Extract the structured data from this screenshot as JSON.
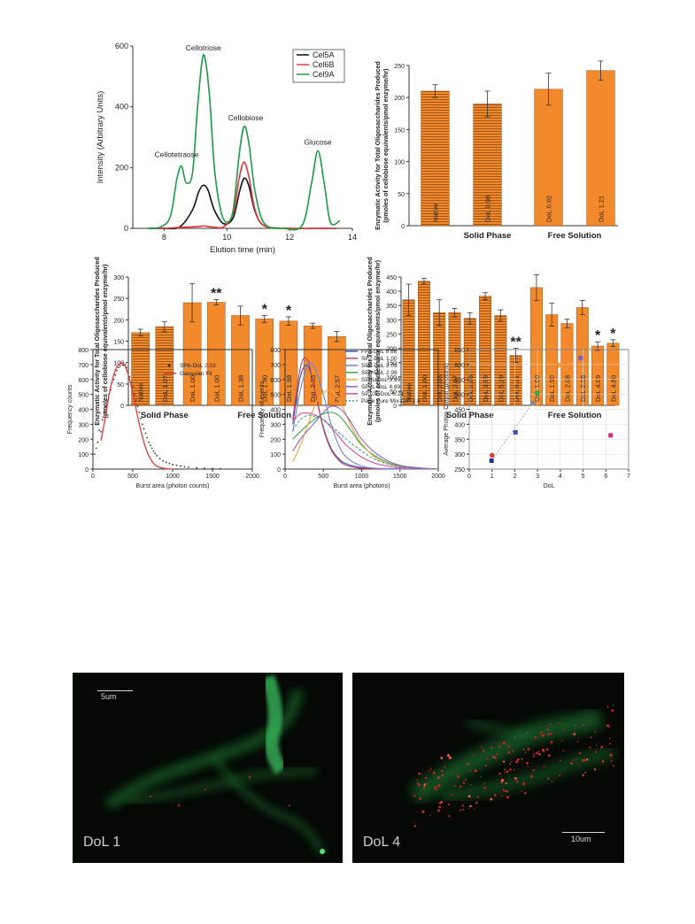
{
  "chart_data": [
    {
      "type": "line",
      "xlabel": "Elution time (min)",
      "ylabel": "Intensity (Arbitrary Units)",
      "xlim": [
        7,
        14
      ],
      "ylim": [
        0,
        600
      ],
      "xticks": [
        8,
        10,
        12,
        14
      ],
      "yticks": [
        0,
        200,
        400,
        600
      ],
      "legend_position": "top-right",
      "peak_labels": [
        {
          "text": "Cellotriose",
          "x": 9.25,
          "y": 585
        },
        {
          "text": "Cellotetraose",
          "x": 8.4,
          "y": 235
        },
        {
          "text": "Cellobiose",
          "x": 10.6,
          "y": 355
        },
        {
          "text": "Glucose",
          "x": 12.9,
          "y": 275
        }
      ],
      "series": [
        {
          "name": "Cel5A",
          "color": "#111111",
          "x": [
            7.5,
            8.0,
            8.5,
            8.9,
            9.1,
            9.25,
            9.4,
            9.6,
            9.9,
            10.2,
            10.4,
            10.55,
            10.7,
            10.9,
            11.2,
            12.0,
            13.0,
            13.5
          ],
          "y": [
            0,
            0,
            5,
            60,
            120,
            142,
            125,
            60,
            15,
            35,
            120,
            165,
            140,
            55,
            8,
            0,
            0,
            0
          ]
        },
        {
          "name": "Cel6B",
          "color": "#e8353b",
          "x": [
            7.5,
            8.0,
            8.5,
            8.9,
            9.1,
            9.25,
            9.4,
            9.6,
            9.9,
            10.2,
            10.4,
            10.55,
            10.7,
            10.9,
            11.2,
            12.0,
            13.0,
            13.5
          ],
          "y": [
            0,
            0,
            3,
            5,
            6,
            8,
            6,
            4,
            5,
            50,
            170,
            218,
            170,
            60,
            8,
            0,
            0,
            0
          ]
        },
        {
          "name": "Cel9A",
          "color": "#1a9c46",
          "x": [
            7.5,
            7.9,
            8.2,
            8.4,
            8.55,
            8.7,
            8.9,
            9.05,
            9.2,
            9.3,
            9.45,
            9.6,
            9.8,
            10.0,
            10.2,
            10.4,
            10.55,
            10.7,
            10.9,
            11.2,
            11.8,
            12.4,
            12.7,
            12.9,
            13.1,
            13.3,
            13.6
          ],
          "y": [
            0,
            5,
            40,
            160,
            205,
            150,
            180,
            380,
            545,
            560,
            430,
            200,
            60,
            20,
            60,
            250,
            335,
            280,
            120,
            15,
            0,
            10,
            150,
            255,
            150,
            20,
            25
          ]
        }
      ]
    },
    {
      "type": "bar",
      "ylabel": "Enzymatic Activity for Total Oligosaccharides Produced (pmoles of cellobiose equivalents/pmol enzyme/hr)",
      "ylim": [
        0,
        250
      ],
      "yticks": [
        0,
        50,
        100,
        150,
        200,
        250
      ],
      "bar_color": "#f28a2b",
      "groups": [
        {
          "label": "Solid Phase",
          "bars": [
            1
          ]
        },
        {
          "label": "Free Solution",
          "bars": [
            2,
            3
          ]
        }
      ],
      "categories": [
        "Native",
        "DoL 0.98",
        "DoL 0.92",
        "DoL 1.21"
      ],
      "values": [
        210,
        190,
        213,
        242
      ],
      "errors": [
        10,
        20,
        25,
        15
      ],
      "hatched": [
        true,
        true,
        false,
        false
      ],
      "stars": [
        "",
        "",
        "",
        ""
      ]
    },
    {
      "type": "bar",
      "ylabel": "Enzymatic Activity for Total Oligosaccharides Produced (pmoles of cellobiose equivalents/pmol enzyme/hr)",
      "ylim": [
        0,
        300
      ],
      "yticks": [
        0,
        50,
        100,
        150,
        200,
        250,
        300
      ],
      "bar_color": "#f28a2b",
      "groups": [
        {
          "label": "Solid Phase",
          "bars": [
            1
          ]
        },
        {
          "label": "Free Solution",
          "bars": [
            2,
            3,
            4,
            5,
            6,
            7,
            8
          ]
        }
      ],
      "categories": [
        "Native",
        "DoL 1.07",
        "DoL 1.00",
        "DoL 1.00",
        "DoL 1.38",
        "DoL 1.90",
        "DoL 1.98",
        "DoL 2.35",
        "DoL 2.57"
      ],
      "values": [
        170,
        184,
        240,
        241,
        210,
        202,
        197,
        186,
        161
      ],
      "errors": [
        8,
        12,
        45,
        6,
        22,
        8,
        10,
        6,
        12
      ],
      "hatched": [
        true,
        true,
        false,
        false,
        false,
        false,
        false,
        false,
        false
      ],
      "stars": [
        "",
        "",
        "",
        "**",
        "",
        "*",
        "*",
        "",
        ""
      ]
    },
    {
      "type": "bar",
      "ylabel": "Enzymatic Activity for Total Oligosaccharides Produced (pmoles of cellotetraose equivalents/pmol enzyme/hr)",
      "ylim": [
        0,
        450
      ],
      "yticks": [
        0,
        50,
        100,
        150,
        200,
        250,
        300,
        350,
        400,
        450
      ],
      "bar_color": "#f28a2b",
      "groups": [
        {
          "label": "Solid Phase",
          "bars": [
            1,
            2,
            3,
            4,
            5,
            6,
            7
          ]
        },
        {
          "label": "Free Solution",
          "bars": [
            8,
            9,
            10,
            11,
            12,
            13
          ]
        }
      ],
      "categories": [
        "Native",
        "DoL 1.00",
        "DoL 2.03",
        "DoL 2.67",
        "DoL 2.86",
        "DoL 3.99",
        "DoL 5.19",
        "DoL 6.21",
        "DoL 1.00",
        "DoL 1.90",
        "DoL 2.08",
        "DoL 2.98",
        "DoL 4.09",
        "DoL 4.80"
      ],
      "values": [
        370,
        435,
        325,
        325,
        305,
        383,
        315,
        175,
        413,
        318,
        287,
        343,
        208,
        218
      ],
      "errors": [
        55,
        10,
        45,
        15,
        20,
        12,
        20,
        25,
        45,
        40,
        15,
        25,
        15,
        12
      ],
      "hatched": [
        true,
        true,
        true,
        true,
        true,
        true,
        true,
        true,
        false,
        false,
        false,
        false,
        false,
        false
      ],
      "stars": [
        "",
        "",
        "",
        "",
        "",
        "",
        "",
        "**",
        "",
        "",
        "",
        "",
        "*",
        "*"
      ]
    },
    {
      "type": "scatter",
      "xlabel": "Burst area (photon counts)",
      "ylabel": "Frequency counts",
      "xlim": [
        0,
        2000
      ],
      "ylim": [
        0,
        800
      ],
      "xticks": [
        0,
        500,
        1000,
        1500,
        2000
      ],
      "yticks": [
        0,
        100,
        200,
        300,
        400,
        500,
        600,
        700,
        800
      ],
      "legend_position": "top-right",
      "series": [
        {
          "name": "SP6-DoL 2.03",
          "color": "#333333",
          "x": [
            20,
            40,
            60,
            80,
            100,
            120,
            140,
            160,
            180,
            200,
            220,
            240,
            260,
            280,
            300,
            320,
            340,
            360,
            380,
            400,
            420,
            440,
            460,
            480,
            500,
            520,
            540,
            560,
            580,
            600,
            620,
            640,
            660,
            680,
            700,
            720,
            740,
            760,
            780,
            800,
            840,
            880,
            920,
            960,
            1000,
            1050,
            1100,
            1150,
            1200,
            1300,
            1400,
            1500,
            1600
          ],
          "y": [
            100,
            140,
            180,
            260,
            250,
            330,
            380,
            420,
            460,
            500,
            530,
            580,
            600,
            630,
            660,
            680,
            690,
            710,
            695,
            700,
            680,
            650,
            620,
            580,
            550,
            500,
            460,
            420,
            380,
            340,
            300,
            270,
            240,
            210,
            180,
            160,
            140,
            120,
            105,
            90,
            70,
            55,
            45,
            38,
            30,
            25,
            20,
            15,
            12,
            8,
            5,
            4,
            2
          ]
        },
        {
          "name": "Gaussian Fit",
          "color": "#e03a3a",
          "x": [
            100,
            150,
            200,
            250,
            300,
            350,
            380,
            400,
            450,
            500,
            550,
            600,
            650,
            700,
            750,
            800,
            900,
            1000
          ],
          "y": [
            190,
            330,
            490,
            610,
            685,
            710,
            705,
            695,
            620,
            510,
            380,
            260,
            160,
            90,
            45,
            20,
            4,
            0
          ]
        }
      ]
    },
    {
      "type": "line",
      "xlabel": "Burst area (photons)",
      "ylabel": "Frequency of events",
      "xlim": [
        0,
        2000
      ],
      "ylim": [
        0,
        800
      ],
      "xticks": [
        0,
        500,
        1000,
        1500,
        2000
      ],
      "yticks": [
        0,
        100,
        200,
        300,
        400,
        500,
        600,
        700,
        800
      ],
      "legend_position": "top-right",
      "series": [
        {
          "name": "FP1-DoL 0.98",
          "color": "#3b4fb8",
          "dashed": false,
          "x": [
            100,
            200,
            300,
            400,
            500,
            600,
            700,
            800,
            1000,
            1200,
            1500,
            2000
          ],
          "y": [
            300,
            620,
            690,
            500,
            280,
            140,
            70,
            35,
            10,
            4,
            1,
            0
          ]
        },
        {
          "name": "SP2-DoL 1.00",
          "color": "#c2405c",
          "dashed": false,
          "x": [
            100,
            150,
            200,
            250,
            300,
            350,
            400,
            500,
            600,
            700,
            800,
            1000,
            1200,
            1500,
            2000
          ],
          "y": [
            330,
            520,
            680,
            745,
            720,
            620,
            500,
            270,
            130,
            60,
            25,
            5,
            2,
            0,
            0
          ]
        },
        {
          "name": "SP6-DoL 2.03",
          "color": "#6f7fd9",
          "dashed": false,
          "x": [
            100,
            200,
            300,
            350,
            400,
            500,
            600,
            700,
            800,
            1000,
            1200,
            1500,
            2000
          ],
          "y": [
            250,
            530,
            700,
            705,
            660,
            500,
            300,
            160,
            80,
            20,
            5,
            1,
            0
          ]
        },
        {
          "name": "SP8-DoL 2.98",
          "color": "#3aa84a",
          "dashed": false,
          "x": [
            100,
            200,
            300,
            400,
            500,
            600,
            700,
            800,
            900,
            1000,
            1200,
            1500,
            2000
          ],
          "y": [
            200,
            250,
            300,
            340,
            370,
            380,
            360,
            300,
            230,
            160,
            80,
            20,
            0
          ]
        },
        {
          "name": "SP5L-DoL 3.99",
          "color": "#f5a33c",
          "dashed": false,
          "x": [
            100,
            200,
            300,
            400,
            500,
            600,
            700,
            800,
            900,
            1000,
            1200,
            1500,
            2000
          ],
          "y": [
            50,
            160,
            300,
            440,
            510,
            530,
            470,
            360,
            250,
            170,
            70,
            15,
            0
          ]
        },
        {
          "name": "SP7L-DoL 4.89",
          "color": "#8c63c4",
          "dashed": false,
          "x": [
            100,
            200,
            300,
            400,
            500,
            600,
            700,
            800,
            900,
            1000,
            1200,
            1500,
            2000
          ],
          "y": [
            120,
            200,
            260,
            320,
            380,
            420,
            410,
            360,
            280,
            200,
            100,
            25,
            0
          ]
        },
        {
          "name": "SP10L-DoL 6.21",
          "color": "#d94c9c",
          "dashed": false,
          "x": [
            100,
            200,
            300,
            400,
            500,
            600,
            700,
            800,
            1000,
            1200,
            1500,
            2000
          ],
          "y": [
            320,
            370,
            375,
            360,
            330,
            280,
            220,
            160,
            80,
            35,
            8,
            0
          ]
        },
        {
          "name": "Page Pure Mix-O/P 2.8",
          "color": "#3aa88f",
          "dashed": true,
          "x": [
            100,
            200,
            300,
            400,
            500,
            600,
            800,
            1000,
            1200,
            1500,
            2000
          ],
          "y": [
            260,
            330,
            360,
            350,
            330,
            290,
            200,
            120,
            60,
            15,
            0
          ]
        }
      ]
    },
    {
      "type": "scatter",
      "xlabel": "DoL",
      "ylabel": "Average Photon Output (photons)",
      "xlim": [
        0,
        7
      ],
      "ylim": [
        250,
        650
      ],
      "xticks": [
        0,
        1,
        2,
        3,
        4,
        5,
        6,
        7
      ],
      "yticks": [
        250,
        300,
        350,
        400,
        450,
        500,
        550,
        600,
        650
      ],
      "points": [
        {
          "x": 0.98,
          "y": 278,
          "color": "#1f2f8c",
          "shape": "square"
        },
        {
          "x": 1.0,
          "y": 296,
          "color": "#e23b3b",
          "shape": "circle"
        },
        {
          "x": 2.03,
          "y": 373,
          "color": "#3a4fc0",
          "shape": "square"
        },
        {
          "x": 2.8,
          "y": 470,
          "color": "#8a8a8a",
          "shape": "circle"
        },
        {
          "x": 2.98,
          "y": 505,
          "color": "#2da84a",
          "shape": "circle"
        },
        {
          "x": 3.99,
          "y": 598,
          "color": "#f59a35",
          "shape": "square"
        },
        {
          "x": 4.89,
          "y": 622,
          "color": "#7a5cc4",
          "shape": "square"
        },
        {
          "x": 6.21,
          "y": 363,
          "color": "#e0277a",
          "shape": "square"
        }
      ],
      "trendline": {
        "x": [
          0.98,
          3.99
        ],
        "y": [
          278,
          598
        ],
        "dashed": true
      }
    }
  ],
  "micrographs": [
    {
      "label": "DoL 1",
      "scale_text": "5um"
    },
    {
      "label": "DoL 4",
      "scale_text": "10um"
    }
  ]
}
